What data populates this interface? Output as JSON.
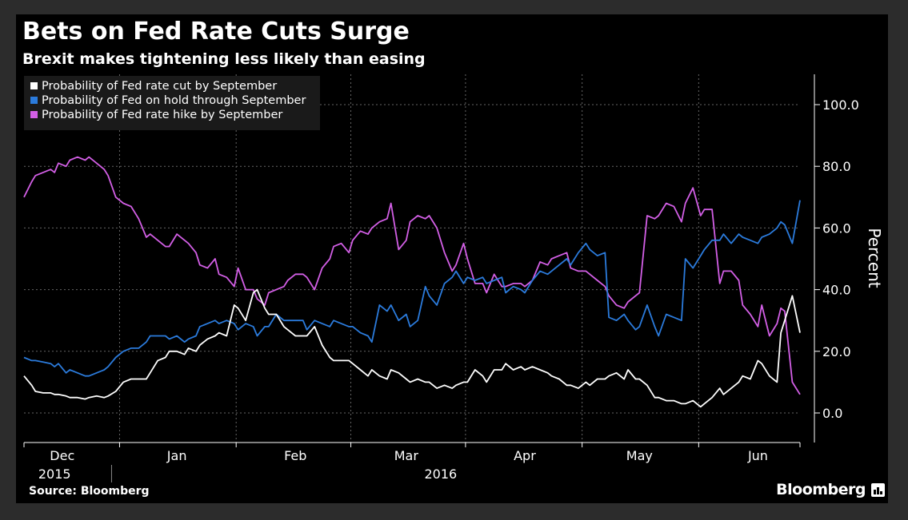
{
  "header": {
    "title": "Bets on Fed Rate Cuts Surge",
    "subtitle": "Brexit makes tightening less likely than easing"
  },
  "footer": {
    "source": "Source: Bloomberg",
    "brand": "Bloomberg",
    "brand_icon": "bloomberg-chart-icon"
  },
  "colors": {
    "background": "#000000",
    "cut": "#ffffff",
    "hold": "#2b7bdc",
    "hike": "#d35fe6",
    "grid": "#666666"
  },
  "chart_data": {
    "type": "line",
    "title": "Bets on Fed Rate Cuts Surge",
    "subtitle": "Brexit makes tightening less likely than easing",
    "ylabel": "Percent",
    "xlabel": "",
    "ylim": [
      -9,
      110
    ],
    "yticks": [
      0,
      20,
      40,
      60,
      80,
      100
    ],
    "ytick_labels": [
      "0.0",
      "20.0",
      "40.0",
      "60.0",
      "80.0",
      "100.0"
    ],
    "y_axis_side": "right",
    "grid": true,
    "legend_position": "top-left",
    "x_range_days": [
      0,
      203
    ],
    "x_ticks": [
      {
        "label": "Dec",
        "day": 10
      },
      {
        "label": "Jan",
        "day": 40
      },
      {
        "label": "Feb",
        "day": 71
      },
      {
        "label": "Mar",
        "day": 100
      },
      {
        "label": "Apr",
        "day": 131
      },
      {
        "label": "May",
        "day": 161
      },
      {
        "label": "Jun",
        "day": 192
      }
    ],
    "year_labels": [
      {
        "label": "2015",
        "day": 8
      },
      {
        "label": "2016",
        "day": 109
      }
    ],
    "series": [
      {
        "name": "Probability of Fed rate cut by September",
        "color": "#ffffff",
        "x": [
          0,
          2,
          3,
          5,
          7,
          8,
          9,
          11,
          12,
          14,
          16,
          17,
          19,
          21,
          22,
          24,
          26,
          28,
          30,
          32,
          33,
          35,
          37,
          38,
          40,
          42,
          43,
          45,
          46,
          48,
          50,
          51,
          53,
          55,
          56,
          58,
          60,
          61,
          63,
          64,
          66,
          68,
          69,
          71,
          73,
          74,
          76,
          78,
          80,
          81,
          83,
          85,
          86,
          88,
          90,
          91,
          93,
          95,
          96,
          98,
          100,
          101,
          103,
          105,
          106,
          108,
          110,
          112,
          113,
          115,
          116,
          118,
          120,
          121,
          123,
          125,
          126,
          128,
          130,
          131,
          133,
          135,
          137,
          138,
          140,
          142,
          143,
          145,
          147,
          148,
          150,
          152,
          153,
          155,
          157,
          158,
          160,
          161,
          163,
          165,
          166,
          168,
          170,
          172,
          173,
          175,
          177,
          178,
          180,
          182,
          183,
          185,
          187,
          188,
          190,
          192,
          193,
          195,
          197,
          198
        ],
        "values": [
          12,
          9,
          7,
          6.5,
          6.5,
          6,
          6,
          5.5,
          5,
          5,
          4.5,
          5,
          5.5,
          5,
          5.5,
          7,
          10,
          11,
          11,
          11,
          13,
          17,
          18,
          20,
          20,
          19,
          21,
          20,
          22,
          24,
          25,
          26,
          25,
          35,
          34,
          30,
          39,
          40,
          34,
          32,
          32,
          28,
          27,
          25,
          25,
          25,
          28,
          22,
          18,
          17,
          17,
          17,
          16,
          14,
          12,
          14,
          12,
          11,
          14,
          13,
          11,
          10,
          11,
          10,
          10,
          8,
          9,
          8,
          9,
          10,
          10,
          14,
          12,
          10,
          14,
          14,
          16,
          14,
          15,
          14,
          15,
          14,
          13,
          12,
          11,
          9,
          9,
          8,
          10,
          9,
          11,
          11,
          12,
          13,
          11,
          14,
          11,
          11,
          9,
          5,
          5,
          4,
          4,
          3,
          3,
          4,
          2,
          3,
          5,
          8,
          6,
          8,
          10,
          12,
          11,
          17,
          16,
          12,
          10,
          26
        ],
        "values_tail_note": "final spike",
        "x_tail": [
          199,
          201,
          203
        ],
        "values_tail": [
          30,
          38,
          26
        ]
      },
      {
        "name": "Probability of Fed on hold through September",
        "color": "#2b7bdc",
        "x": [
          0,
          2,
          3,
          5,
          7,
          8,
          9,
          11,
          12,
          14,
          16,
          17,
          19,
          21,
          22,
          24,
          26,
          28,
          30,
          32,
          33,
          35,
          37,
          38,
          40,
          42,
          43,
          45,
          46,
          48,
          50,
          51,
          53,
          55,
          56,
          58,
          60,
          61,
          63,
          64,
          66,
          68,
          69,
          71,
          73,
          74,
          76,
          78,
          80,
          81,
          83,
          85,
          86,
          88,
          90,
          91,
          93,
          95,
          96,
          98,
          100,
          101,
          103,
          105,
          106,
          108,
          110,
          112,
          113,
          115,
          116,
          118,
          120,
          121,
          123,
          125,
          126,
          128,
          130,
          131,
          133,
          135,
          137,
          138,
          140,
          142,
          143,
          145,
          147,
          148,
          150,
          152,
          153,
          155,
          157,
          158,
          160,
          161,
          163,
          165,
          166,
          168,
          170,
          172,
          173,
          175,
          177,
          178,
          180,
          182,
          183,
          185,
          187,
          188,
          190,
          192,
          193,
          195,
          197,
          198
        ],
        "values": [
          18,
          17,
          17,
          16.5,
          16,
          15,
          16,
          13,
          14,
          13,
          12,
          12,
          13,
          14,
          15,
          18,
          20,
          21,
          21,
          23,
          25,
          25,
          25,
          24,
          25,
          23,
          24,
          25,
          28,
          29,
          30,
          29,
          30,
          29,
          27,
          29,
          28,
          25,
          28,
          28,
          32,
          30,
          30,
          30,
          30,
          27,
          30,
          29,
          28,
          30,
          29,
          28,
          28,
          26,
          25,
          23,
          35,
          33,
          35,
          30,
          32,
          28,
          30,
          41,
          38,
          35,
          42,
          44,
          46,
          42,
          44,
          43,
          44,
          42,
          43,
          44,
          39,
          41,
          40,
          39,
          43,
          46,
          45,
          46,
          48,
          50,
          48,
          52,
          55,
          53,
          51,
          52,
          31,
          30,
          32,
          30,
          27,
          28,
          35,
          28,
          25,
          32,
          31,
          30,
          50,
          47,
          51,
          53,
          56,
          56,
          58,
          55,
          58,
          57,
          56,
          55,
          57,
          58,
          60,
          62
        ],
        "x_tail": [
          199,
          201,
          203
        ],
        "values_tail": [
          61,
          55,
          69
        ]
      },
      {
        "name": "Probability of Fed rate hike by September",
        "color": "#d35fe6",
        "x": [
          0,
          2,
          3,
          5,
          7,
          8,
          9,
          11,
          12,
          14,
          16,
          17,
          19,
          21,
          22,
          24,
          26,
          28,
          30,
          32,
          33,
          35,
          37,
          38,
          40,
          42,
          43,
          45,
          46,
          48,
          50,
          51,
          53,
          55,
          56,
          58,
          60,
          61,
          63,
          64,
          66,
          68,
          69,
          71,
          73,
          74,
          76,
          78,
          80,
          81,
          83,
          85,
          86,
          88,
          90,
          91,
          93,
          95,
          96,
          98,
          100,
          101,
          103,
          105,
          106,
          108,
          110,
          112,
          113,
          115,
          116,
          118,
          120,
          121,
          123,
          125,
          126,
          128,
          130,
          131,
          133,
          135,
          137,
          138,
          140,
          142,
          143,
          145,
          147,
          148,
          150,
          152,
          153,
          155,
          157,
          158,
          160,
          161,
          163,
          165,
          166,
          168,
          170,
          172,
          173,
          175,
          177,
          178,
          180,
          182,
          183,
          185,
          187,
          188,
          190,
          192,
          193,
          195,
          197,
          198
        ],
        "values": [
          70,
          75,
          77,
          78,
          79,
          78,
          81,
          80,
          82,
          83,
          82,
          83,
          81,
          79,
          77,
          70,
          68,
          67,
          63,
          57,
          58,
          56,
          54,
          54,
          58,
          56,
          55,
          52,
          48,
          47,
          50,
          45,
          44,
          41,
          47,
          40,
          40,
          37,
          35,
          39,
          40,
          41,
          43,
          45,
          45,
          44,
          40,
          47,
          50,
          54,
          55,
          52,
          56,
          59,
          58,
          60,
          62,
          63,
          68,
          53,
          56,
          62,
          64,
          63,
          64,
          60,
          52,
          46,
          48,
          55,
          50,
          42,
          42,
          39,
          45,
          41,
          41,
          42,
          42,
          41,
          43,
          49,
          48,
          50,
          51,
          52,
          47,
          46,
          46,
          45,
          43,
          41,
          38,
          35,
          34,
          36,
          38,
          39,
          64,
          63,
          64,
          68,
          67,
          62,
          68,
          73,
          64,
          66,
          66,
          42,
          46,
          46,
          43,
          35,
          32,
          28,
          35,
          25,
          29,
          34
        ],
        "x_tail": [
          199,
          201,
          203
        ],
        "values_tail": [
          33,
          10,
          6
        ]
      }
    ]
  }
}
